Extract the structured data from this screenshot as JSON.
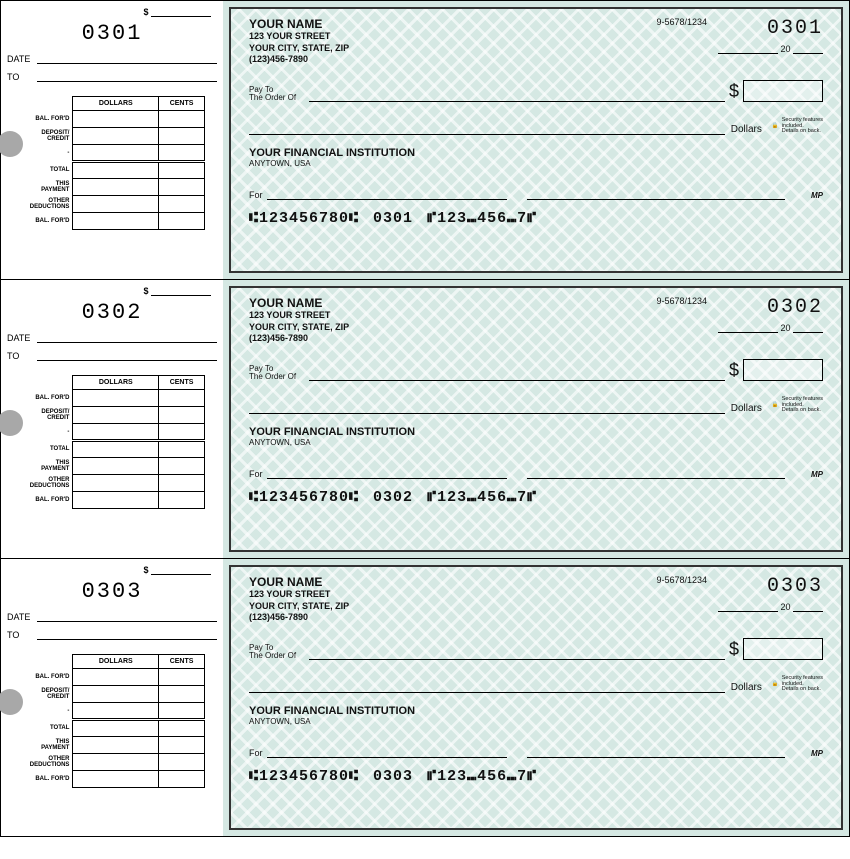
{
  "colors": {
    "check_bg": "#d5e8e3",
    "stub_bg": "#ffffff",
    "text": "#111111",
    "border": "#333333"
  },
  "stub_headers": {
    "dollars": "DOLLARS",
    "cents": "CENTS"
  },
  "stub_rows": [
    "BAL. FOR'D",
    "DEPOSIT/\nCREDIT",
    "-",
    "TOTAL",
    "THIS\nPAYMENT",
    "OTHER\nDEDUCTIONS",
    "BAL. FOR'D"
  ],
  "stub_labels": {
    "date": "DATE",
    "to": "TO",
    "dollar": "$"
  },
  "check_labels": {
    "payto_line1": "Pay To",
    "payto_line2": "The Order Of",
    "dollars_word": "Dollars",
    "for": "For",
    "year_prefix": "20",
    "mp": "MP",
    "security": "Security features\nincluded.\nDetails on back.",
    "lock": "🔒"
  },
  "micr_prefix": "⑆123456780⑆",
  "micr_suffix": "⑈123⑉456⑉7⑈",
  "checks": [
    {
      "number": "0301",
      "name": "YOUR NAME",
      "street": "123 YOUR STREET",
      "city": "YOUR CITY, STATE, ZIP",
      "phone": "(123)456-7890",
      "routing_top": "9-5678/1234",
      "bank_name": "YOUR FINANCIAL INSTITUTION",
      "bank_loc": "ANYTOWN, USA",
      "micr_num": "0301"
    },
    {
      "number": "0302",
      "name": "YOUR NAME",
      "street": "123 YOUR STREET",
      "city": "YOUR CITY, STATE, ZIP",
      "phone": "(123)456-7890",
      "routing_top": "9-5678/1234",
      "bank_name": "YOUR FINANCIAL INSTITUTION",
      "bank_loc": "ANYTOWN, USA",
      "micr_num": "0302"
    },
    {
      "number": "0303",
      "name": "YOUR NAME",
      "street": "123 YOUR STREET",
      "city": "YOUR CITY, STATE, ZIP",
      "phone": "(123)456-7890",
      "routing_top": "9-5678/1234",
      "bank_name": "YOUR FINANCIAL INSTITUTION",
      "bank_loc": "ANYTOWN, USA",
      "micr_num": "0303"
    }
  ]
}
